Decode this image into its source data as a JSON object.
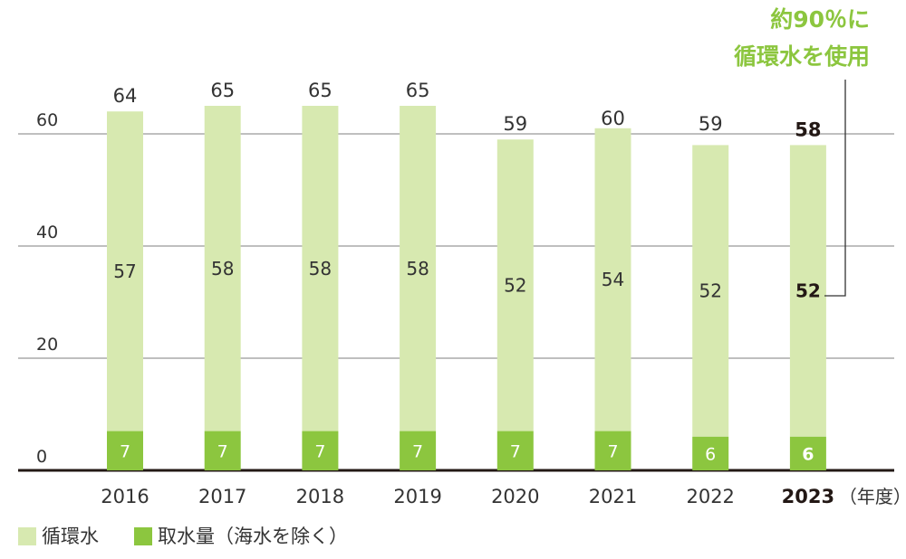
{
  "chart_data": {
    "type": "bar",
    "stacked": true,
    "categories": [
      "2016",
      "2017",
      "2018",
      "2019",
      "2020",
      "2021",
      "2022",
      "2023"
    ],
    "highlight_category": "2023",
    "series": [
      {
        "name": "取水量（海水を除く）",
        "values": [
          7,
          7,
          7,
          7,
          7,
          7,
          6,
          6
        ],
        "color": "#8cc63f"
      },
      {
        "name": "循環水",
        "values": [
          57,
          58,
          58,
          58,
          52,
          54,
          52,
          52
        ],
        "color": "#d7e9b0"
      }
    ],
    "totals": [
      64,
      65,
      65,
      65,
      59,
      60,
      59,
      58
    ],
    "y_ticks": [
      0,
      20,
      40,
      60
    ],
    "ylim": [
      0,
      60
    ],
    "x_unit": "（年度）",
    "grid": true,
    "legend_position": "bottom-left",
    "annotation": [
      "約90％に",
      "循環水を使用"
    ],
    "colors": {
      "accent": "#8cc63f",
      "circulating": "#d7e9b0",
      "grid": "#999999",
      "axis": "#231815"
    }
  }
}
